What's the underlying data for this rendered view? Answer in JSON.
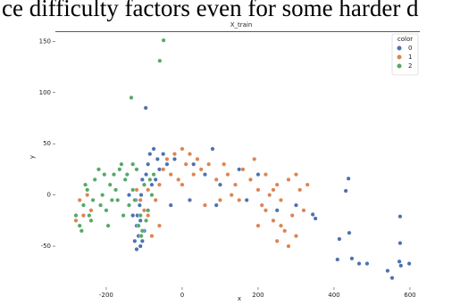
{
  "page_text": "ce difficulty factors even for some harder d",
  "chart_data": {
    "type": "scatter",
    "title": "X_train",
    "x_label": "x",
    "y_label": "y",
    "legend_title": "color",
    "legend_position": "upper right",
    "xlim": [
      -334,
      626
    ],
    "ylim": [
      -90,
      159
    ],
    "xticks": [
      -200,
      0,
      200,
      400,
      600
    ],
    "yticks": [
      -50,
      0,
      50,
      100,
      150
    ],
    "grid": false,
    "series": [
      {
        "name": "0",
        "color": "#4c72b0",
        "x": [
          -96,
          -120,
          -115,
          -110,
          -105,
          -118,
          -112,
          -108,
          -100,
          -95,
          -90,
          -85,
          -75,
          -65,
          -60,
          -80,
          -130,
          -125,
          -100,
          -110,
          -122,
          -70,
          -50,
          -40,
          -20,
          30,
          80,
          60,
          100,
          150,
          200,
          250,
          300,
          170,
          90,
          20,
          -30,
          -120,
          -140,
          -105,
          438,
          431,
          344,
          351,
          414,
          440,
          409,
          447,
          466,
          487,
          574,
          574,
          572,
          553,
          541,
          598,
          576
        ],
        "values": [
          85,
          -30,
          -40,
          -50,
          -45,
          -20,
          -10,
          0,
          10,
          20,
          30,
          40,
          45,
          35,
          25,
          10,
          -20,
          -45,
          -35,
          -25,
          -5,
          15,
          40,
          30,
          35,
          30,
          45,
          20,
          10,
          25,
          20,
          -15,
          -10,
          -5,
          -10,
          -5,
          -10,
          -53,
          0,
          15,
          16,
          4,
          -19,
          -23,
          -43,
          -37,
          -63,
          -62,
          -67,
          -67,
          -21,
          -47,
          -65,
          -81,
          -74,
          -67,
          -69
        ]
      },
      {
        "name": "1",
        "color": "#dd8452",
        "x": [
          -280,
          -270,
          -260,
          -250,
          -240,
          -110,
          -100,
          -120,
          -90,
          -70,
          -60,
          -50,
          -40,
          -30,
          -20,
          0,
          10,
          20,
          30,
          40,
          50,
          70,
          90,
          110,
          120,
          140,
          160,
          180,
          190,
          200,
          210,
          220,
          230,
          240,
          250,
          260,
          270,
          280,
          290,
          300,
          310,
          320,
          330,
          280,
          260,
          240,
          220,
          200,
          300,
          250,
          150,
          130,
          100,
          60,
          0,
          -10,
          -80,
          -90,
          -60
        ],
        "values": [
          -25,
          -5,
          -20,
          0,
          -15,
          -5,
          -15,
          5,
          5,
          -5,
          10,
          25,
          35,
          20,
          40,
          45,
          30,
          40,
          20,
          35,
          25,
          30,
          15,
          30,
          20,
          10,
          25,
          15,
          35,
          5,
          -10,
          20,
          0,
          -25,
          10,
          -5,
          -35,
          15,
          -20,
          -40,
          5,
          -15,
          10,
          -50,
          -30,
          5,
          -15,
          -30,
          20,
          -45,
          -5,
          0,
          -5,
          -10,
          10,
          15,
          -40,
          -20,
          -30
        ]
      },
      {
        "name": "2",
        "color": "#55a868",
        "x": [
          -49,
          -59,
          -134,
          -280,
          -270,
          -260,
          -250,
          -240,
          -230,
          -220,
          -210,
          -200,
          -190,
          -180,
          -170,
          -160,
          -150,
          -140,
          -130,
          -120,
          -110,
          -100,
          -90,
          -80,
          -75,
          -105,
          -115,
          -265,
          -245,
          -235,
          -205,
          -195,
          -185,
          -175,
          -165,
          -155,
          -145,
          -125,
          -95,
          -85,
          -255,
          -215,
          -130,
          -108
        ],
        "values": [
          151,
          131,
          95,
          -20,
          -30,
          -10,
          5,
          -25,
          15,
          25,
          0,
          -15,
          10,
          20,
          -5,
          30,
          15,
          -10,
          5,
          25,
          -20,
          10,
          -15,
          0,
          20,
          -35,
          -30,
          -35,
          -20,
          -5,
          20,
          -30,
          -5,
          5,
          25,
          -20,
          20,
          -5,
          -25,
          15,
          10,
          -10,
          30,
          -40
        ]
      }
    ]
  }
}
